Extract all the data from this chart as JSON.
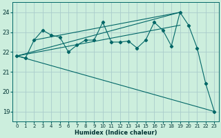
{
  "xlabel": "Humidex (Indice chaleur)",
  "background_color": "#cceedd",
  "grid_color": "#aacccc",
  "line_color": "#006666",
  "xlim": [
    -0.5,
    23.5
  ],
  "ylim": [
    18.5,
    24.5
  ],
  "xticks": [
    0,
    1,
    2,
    3,
    4,
    5,
    6,
    7,
    8,
    9,
    10,
    11,
    12,
    13,
    14,
    15,
    16,
    17,
    18,
    19,
    20,
    21,
    22,
    23
  ],
  "yticks": [
    19,
    20,
    21,
    22,
    23,
    24
  ],
  "series": [
    {
      "x": [
        0,
        1,
        2,
        3,
        4,
        5,
        6,
        7,
        8,
        9,
        10,
        11,
        12,
        13,
        14,
        15,
        16,
        17,
        18,
        19,
        20,
        21,
        22,
        23
      ],
      "y": [
        21.8,
        21.7,
        22.6,
        23.1,
        22.85,
        22.75,
        22.0,
        22.35,
        22.6,
        22.6,
        23.5,
        22.5,
        22.5,
        22.55,
        22.2,
        22.6,
        23.5,
        23.1,
        22.3,
        24.0,
        23.35,
        22.2,
        20.4,
        19.0
      ]
    },
    {
      "x": [
        0,
        23
      ],
      "y": [
        21.8,
        19.0
      ]
    },
    {
      "x": [
        0,
        19
      ],
      "y": [
        21.8,
        24.0
      ]
    },
    {
      "x": [
        0,
        19
      ],
      "y": [
        21.8,
        23.35
      ]
    },
    {
      "x": [
        2,
        19
      ],
      "y": [
        22.6,
        24.0
      ]
    }
  ]
}
